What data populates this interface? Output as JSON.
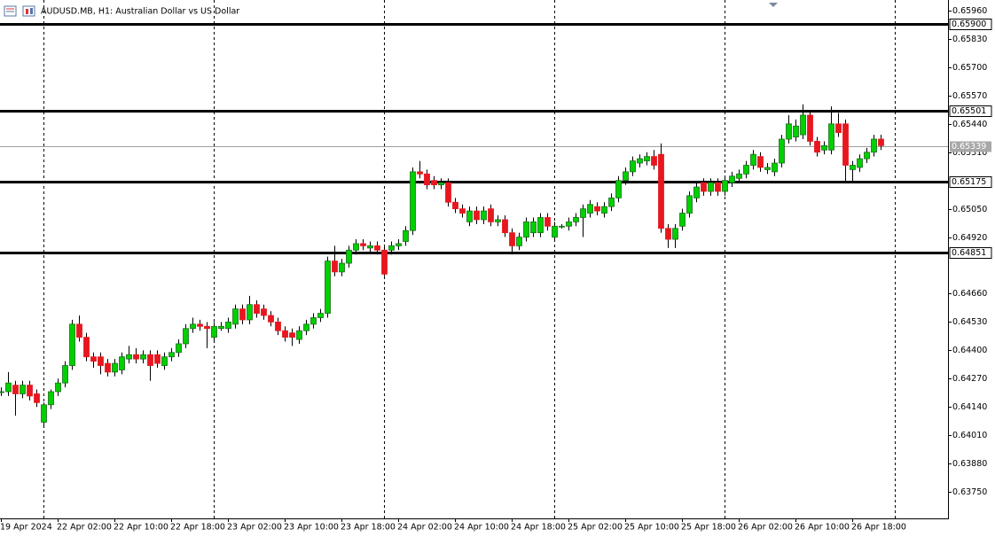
{
  "chart_data": {
    "type": "candlestick",
    "title": "AUDUSD.MB, H1:  Australian Dollar vs US Dollar",
    "up_color": "#00d000",
    "down_color": "#e8161e",
    "ylim": [
      0.63628,
      0.66009
    ],
    "yticks": [
      {
        "value": 0.6596,
        "label": "0.65960"
      },
      {
        "value": 0.6583,
        "label": "0.65830"
      },
      {
        "value": 0.657,
        "label": "0.65700"
      },
      {
        "value": 0.6557,
        "label": "0.65570"
      },
      {
        "value": 0.6544,
        "label": "0.65440"
      },
      {
        "value": 0.6531,
        "label": "0.65310"
      },
      {
        "value": 0.6505,
        "label": "0.65050"
      },
      {
        "value": 0.6492,
        "label": "0.64920"
      },
      {
        "value": 0.6466,
        "label": "0.64660"
      },
      {
        "value": 0.6453,
        "label": "0.64530"
      },
      {
        "value": 0.644,
        "label": "0.64400"
      },
      {
        "value": 0.6427,
        "label": "0.64270"
      },
      {
        "value": 0.6414,
        "label": "0.64140"
      },
      {
        "value": 0.6401,
        "label": "0.64010"
      },
      {
        "value": 0.6388,
        "label": "0.63880"
      },
      {
        "value": 0.6375,
        "label": "0.63750"
      }
    ],
    "levels": [
      {
        "value": 0.659,
        "label": "0.65900"
      },
      {
        "value": 0.65501,
        "label": "0.65501"
      },
      {
        "value": 0.65175,
        "label": "0.65175"
      },
      {
        "value": 0.64851,
        "label": "0.64851"
      }
    ],
    "current_price": {
      "value": 0.65339,
      "label": "0.65339"
    },
    "categories": [
      "19 Apr 2024",
      null,
      null,
      null,
      null,
      null,
      null,
      null,
      "22 Apr 02:00",
      null,
      null,
      null,
      null,
      null,
      null,
      null,
      "22 Apr 10:00",
      null,
      null,
      null,
      null,
      null,
      null,
      null,
      "22 Apr 18:00",
      null,
      null,
      null,
      null,
      null,
      null,
      null,
      "23 Apr 02:00",
      null,
      null,
      null,
      null,
      null,
      null,
      null,
      "23 Apr 10:00",
      null,
      null,
      null,
      null,
      null,
      null,
      null,
      "23 Apr 18:00",
      null,
      null,
      null,
      null,
      null,
      null,
      null,
      "24 Apr 02:00",
      null,
      null,
      null,
      null,
      null,
      null,
      null,
      "24 Apr 10:00",
      null,
      null,
      null,
      null,
      null,
      null,
      null,
      "24 Apr 18:00",
      null,
      null,
      null,
      null,
      null,
      null,
      null,
      "25 Apr 02:00",
      null,
      null,
      null,
      null,
      null,
      null,
      null,
      "25 Apr 10:00",
      null,
      null,
      null,
      null,
      null,
      null,
      null,
      "25 Apr 18:00",
      null,
      null,
      null,
      null,
      null,
      null,
      null,
      "26 Apr 02:00",
      null,
      null,
      null,
      null,
      null,
      null,
      null,
      "26 Apr 10:00",
      null,
      null,
      null,
      null,
      null,
      null,
      null,
      "26 Apr 18:00",
      null,
      null,
      null,
      null
    ],
    "ohlc": [
      [
        0.6421,
        0.6423,
        0.6419,
        0.6421
      ],
      [
        0.6421,
        0.643,
        0.6419,
        0.6425
      ],
      [
        0.6424,
        0.6426,
        0.641,
        0.642
      ],
      [
        0.642,
        0.6426,
        0.6418,
        0.6424
      ],
      [
        0.6424,
        0.6426,
        0.6417,
        0.6419
      ],
      [
        0.642,
        0.6422,
        0.6414,
        0.6416
      ],
      [
        0.6407,
        0.6416,
        0.6405,
        0.6415
      ],
      [
        0.6415,
        0.6422,
        0.6413,
        0.6421
      ],
      [
        0.6421,
        0.6427,
        0.6419,
        0.6425
      ],
      [
        0.6425,
        0.6435,
        0.6423,
        0.6433
      ],
      [
        0.6433,
        0.6454,
        0.6431,
        0.6452
      ],
      [
        0.6452,
        0.6456,
        0.6444,
        0.6446
      ],
      [
        0.6446,
        0.6448,
        0.6435,
        0.6437
      ],
      [
        0.6437,
        0.6439,
        0.6432,
        0.6435
      ],
      [
        0.6437,
        0.6439,
        0.6429,
        0.6433
      ],
      [
        0.6434,
        0.6436,
        0.6428,
        0.643
      ],
      [
        0.643,
        0.6436,
        0.6428,
        0.6434
      ],
      [
        0.6431,
        0.6439,
        0.6429,
        0.6437
      ],
      [
        0.6436,
        0.6442,
        0.6434,
        0.6438
      ],
      [
        0.6438,
        0.6441,
        0.6434,
        0.6436
      ],
      [
        0.6436,
        0.644,
        0.6434,
        0.6438
      ],
      [
        0.6438,
        0.644,
        0.6426,
        0.6433
      ],
      [
        0.6438,
        0.644,
        0.6432,
        0.6434
      ],
      [
        0.6433,
        0.6439,
        0.6431,
        0.6437
      ],
      [
        0.6437,
        0.6441,
        0.6435,
        0.6439
      ],
      [
        0.6439,
        0.6445,
        0.6437,
        0.6443
      ],
      [
        0.6443,
        0.6452,
        0.6441,
        0.645
      ],
      [
        0.645,
        0.6455,
        0.6448,
        0.6452
      ],
      [
        0.6452,
        0.6454,
        0.6449,
        0.6451
      ],
      [
        0.6451,
        0.6453,
        0.6441,
        0.645
      ],
      [
        0.6446,
        0.6453,
        0.6444,
        0.6451
      ],
      [
        0.645,
        0.6453,
        0.6449,
        0.6451
      ],
      [
        0.645,
        0.6455,
        0.6448,
        0.6453
      ],
      [
        0.6452,
        0.6461,
        0.645,
        0.6459
      ],
      [
        0.6459,
        0.6461,
        0.6452,
        0.6454
      ],
      [
        0.6454,
        0.6465,
        0.6452,
        0.6461
      ],
      [
        0.6461,
        0.6463,
        0.6455,
        0.6457
      ],
      [
        0.6459,
        0.6461,
        0.6454,
        0.6456
      ],
      [
        0.6456,
        0.6458,
        0.6451,
        0.6453
      ],
      [
        0.6453,
        0.6455,
        0.6447,
        0.6449
      ],
      [
        0.6449,
        0.6451,
        0.6444,
        0.6446
      ],
      [
        0.6448,
        0.645,
        0.6442,
        0.6446
      ],
      [
        0.6445,
        0.6451,
        0.6443,
        0.6449
      ],
      [
        0.6449,
        0.6454,
        0.6447,
        0.6452
      ],
      [
        0.6452,
        0.6457,
        0.645,
        0.6455
      ],
      [
        0.6455,
        0.6459,
        0.6453,
        0.6457
      ],
      [
        0.6457,
        0.6483,
        0.6455,
        0.6481
      ],
      [
        0.6481,
        0.6488,
        0.6474,
        0.6476
      ],
      [
        0.6476,
        0.6482,
        0.6474,
        0.648
      ],
      [
        0.648,
        0.6488,
        0.6478,
        0.6486
      ],
      [
        0.6486,
        0.6491,
        0.6484,
        0.6489
      ],
      [
        0.6489,
        0.6491,
        0.6486,
        0.6488
      ],
      [
        0.6487,
        0.649,
        0.6485,
        0.6488
      ],
      [
        0.6488,
        0.649,
        0.6484,
        0.6486
      ],
      [
        0.6486,
        0.6488,
        0.6474,
        0.6475
      ],
      [
        0.6486,
        0.649,
        0.6484,
        0.6488
      ],
      [
        0.6488,
        0.6491,
        0.6486,
        0.6489
      ],
      [
        0.649,
        0.6497,
        0.6488,
        0.6495
      ],
      [
        0.6495,
        0.6524,
        0.6493,
        0.6522
      ],
      [
        0.6522,
        0.6527,
        0.6519,
        0.6521
      ],
      [
        0.6521,
        0.6523,
        0.6514,
        0.6516
      ],
      [
        0.6518,
        0.652,
        0.6514,
        0.6516
      ],
      [
        0.6516,
        0.6519,
        0.6514,
        0.6517
      ],
      [
        0.6517,
        0.6519,
        0.6506,
        0.6508
      ],
      [
        0.6508,
        0.651,
        0.6503,
        0.6505
      ],
      [
        0.6505,
        0.6507,
        0.6501,
        0.6503
      ],
      [
        0.6499,
        0.6506,
        0.6497,
        0.6504
      ],
      [
        0.6504,
        0.6506,
        0.6498,
        0.65
      ],
      [
        0.65,
        0.6506,
        0.6498,
        0.6504
      ],
      [
        0.6505,
        0.6507,
        0.6497,
        0.6499
      ],
      [
        0.6499,
        0.6502,
        0.6497,
        0.65
      ],
      [
        0.65,
        0.6502,
        0.6492,
        0.6494
      ],
      [
        0.6494,
        0.6496,
        0.6484,
        0.6488
      ],
      [
        0.6488,
        0.6494,
        0.6486,
        0.6492
      ],
      [
        0.6492,
        0.6501,
        0.649,
        0.6499
      ],
      [
        0.6494,
        0.6501,
        0.6492,
        0.6499
      ],
      [
        0.6494,
        0.6503,
        0.6492,
        0.6501
      ],
      [
        0.6501,
        0.6503,
        0.6495,
        0.6497
      ],
      [
        0.6492,
        0.6499,
        0.649,
        0.6497
      ],
      [
        0.6497,
        0.6498,
        0.6496,
        0.6497
      ],
      [
        0.6497,
        0.6501,
        0.6495,
        0.6499
      ],
      [
        0.6499,
        0.6503,
        0.6497,
        0.6501
      ],
      [
        0.6501,
        0.6507,
        0.6492,
        0.6505
      ],
      [
        0.6503,
        0.6509,
        0.6501,
        0.6507
      ],
      [
        0.6506,
        0.6508,
        0.6502,
        0.6504
      ],
      [
        0.6503,
        0.6508,
        0.6501,
        0.6506
      ],
      [
        0.6506,
        0.6512,
        0.6504,
        0.651
      ],
      [
        0.651,
        0.652,
        0.6508,
        0.6518
      ],
      [
        0.6518,
        0.6524,
        0.6516,
        0.6522
      ],
      [
        0.6522,
        0.6529,
        0.652,
        0.6527
      ],
      [
        0.6526,
        0.653,
        0.6524,
        0.6528
      ],
      [
        0.6527,
        0.6531,
        0.6525,
        0.6529
      ],
      [
        0.6529,
        0.6532,
        0.6523,
        0.6525
      ],
      [
        0.653,
        0.6535,
        0.6494,
        0.6496
      ],
      [
        0.6496,
        0.6498,
        0.6487,
        0.6491
      ],
      [
        0.6491,
        0.6498,
        0.6487,
        0.6496
      ],
      [
        0.6497,
        0.6505,
        0.6495,
        0.6503
      ],
      [
        0.6503,
        0.6513,
        0.6501,
        0.6511
      ],
      [
        0.651,
        0.6517,
        0.6508,
        0.6515
      ],
      [
        0.6517,
        0.6519,
        0.6511,
        0.6513
      ],
      [
        0.6513,
        0.6519,
        0.6511,
        0.6517
      ],
      [
        0.6517,
        0.6519,
        0.6511,
        0.6513
      ],
      [
        0.6513,
        0.652,
        0.6511,
        0.6518
      ],
      [
        0.6517,
        0.6522,
        0.6515,
        0.652
      ],
      [
        0.6519,
        0.6523,
        0.6517,
        0.6521
      ],
      [
        0.6521,
        0.6527,
        0.6519,
        0.6525
      ],
      [
        0.6525,
        0.6532,
        0.6523,
        0.653
      ],
      [
        0.6529,
        0.6531,
        0.6522,
        0.6524
      ],
      [
        0.6523,
        0.6526,
        0.6521,
        0.6524
      ],
      [
        0.6522,
        0.6528,
        0.652,
        0.6526
      ],
      [
        0.6526,
        0.6539,
        0.6524,
        0.6537
      ],
      [
        0.6537,
        0.6548,
        0.6535,
        0.6544
      ],
      [
        0.6538,
        0.6546,
        0.6536,
        0.6543
      ],
      [
        0.6539,
        0.6553,
        0.6537,
        0.6548
      ],
      [
        0.6548,
        0.655,
        0.6534,
        0.6536
      ],
      [
        0.6536,
        0.6538,
        0.6529,
        0.6531
      ],
      [
        0.6532,
        0.6536,
        0.653,
        0.6534
      ],
      [
        0.6532,
        0.6552,
        0.653,
        0.6544
      ],
      [
        0.6544,
        0.6549,
        0.6538,
        0.654
      ],
      [
        0.6544,
        0.6546,
        0.6517,
        0.6525
      ],
      [
        0.6523,
        0.6527,
        0.6517,
        0.6525
      ],
      [
        0.6524,
        0.653,
        0.6522,
        0.6528
      ],
      [
        0.6528,
        0.6533,
        0.6526,
        0.6531
      ],
      [
        0.6531,
        0.6539,
        0.6529,
        0.6537
      ],
      [
        0.6537,
        0.6539,
        0.6532,
        0.6534
      ]
    ]
  }
}
